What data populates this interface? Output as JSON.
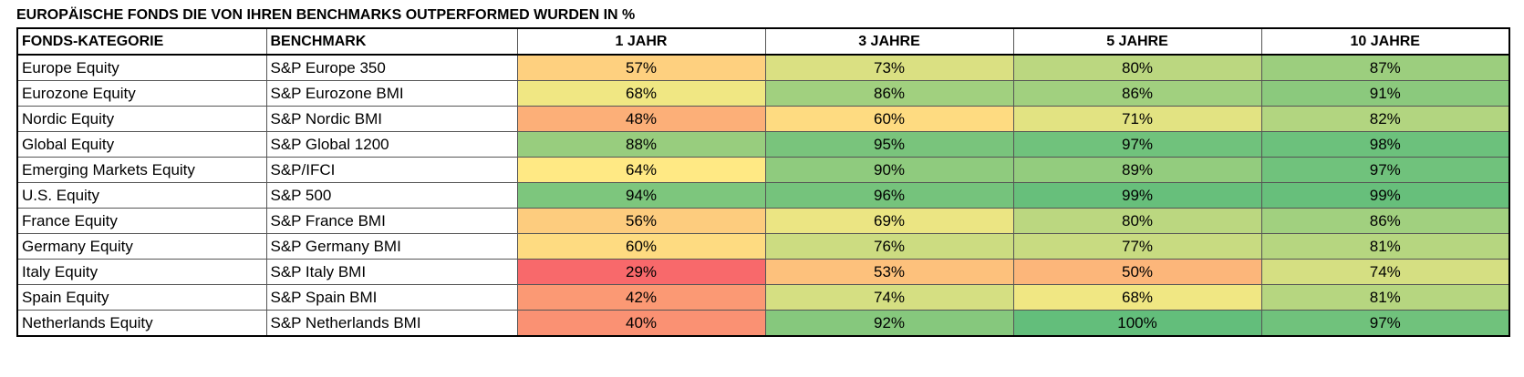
{
  "title": "EUROPÄISCHE FONDS DIE VON IHREN BENCHMARKS OUTPERFORMED WURDEN IN %",
  "columns": [
    "FONDS-KATEGORIE",
    "BENCHMARK",
    "1 JAHR",
    "3 JAHRE",
    "5 JAHRE",
    "10 JAHRE"
  ],
  "colors": {
    "scale_low": "#f8696b",
    "scale_mid": "#ffeb84",
    "scale_high": "#63be7b"
  },
  "chart_data": {
    "type": "heatmap",
    "title": "EUROPÄISCHE FONDS DIE VON IHREN BENCHMARKS OUTPERFORMED WURDEN IN %",
    "categories": [
      "1 JAHR",
      "3 JAHRE",
      "5 JAHRE",
      "10 JAHRE"
    ],
    "unit": "%",
    "rows": [
      {
        "category": "Europe Equity",
        "benchmark": "S&P Europe 350",
        "values": [
          57,
          73,
          80,
          87
        ]
      },
      {
        "category": "Eurozone Equity",
        "benchmark": "S&P Eurozone BMI",
        "values": [
          68,
          86,
          86,
          91
        ]
      },
      {
        "category": "Nordic Equity",
        "benchmark": "S&P Nordic BMI",
        "values": [
          48,
          60,
          71,
          82
        ]
      },
      {
        "category": "Global Equity",
        "benchmark": "S&P Global 1200",
        "values": [
          88,
          95,
          97,
          98
        ]
      },
      {
        "category": "Emerging Markets Equity",
        "benchmark": "S&P/IFCI",
        "values": [
          64,
          90,
          89,
          97
        ]
      },
      {
        "category": "U.S. Equity",
        "benchmark": "S&P 500",
        "values": [
          94,
          96,
          99,
          99
        ]
      },
      {
        "category": "France Equity",
        "benchmark": "S&P France BMI",
        "values": [
          56,
          69,
          80,
          86
        ]
      },
      {
        "category": "Germany Equity",
        "benchmark": "S&P Germany BMI",
        "values": [
          60,
          76,
          77,
          81
        ]
      },
      {
        "category": "Italy Equity",
        "benchmark": "S&P Italy BMI",
        "values": [
          29,
          53,
          50,
          74
        ]
      },
      {
        "category": "Spain Equity",
        "benchmark": "S&P Spain BMI",
        "values": [
          42,
          74,
          68,
          81
        ]
      },
      {
        "category": "Netherlands Equity",
        "benchmark": "S&P Netherlands BMI",
        "values": [
          40,
          92,
          100,
          97
        ]
      }
    ]
  }
}
